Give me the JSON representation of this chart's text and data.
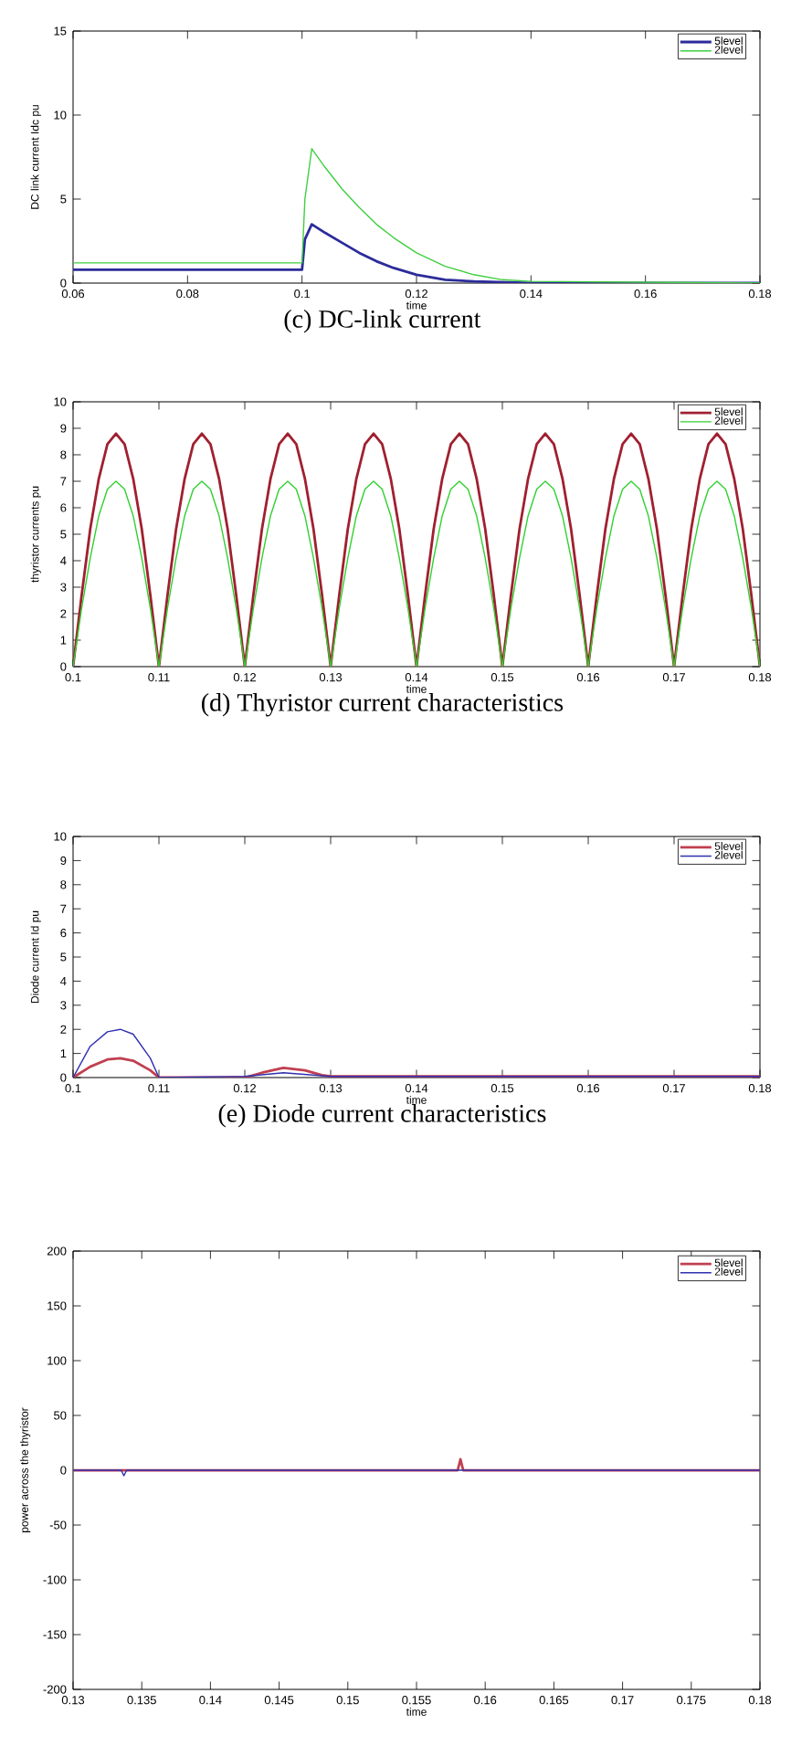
{
  "chart_data": [
    {
      "type": "line",
      "title": "(c)  DC-link current",
      "xlabel": "time",
      "ylabel": "DC link current Idc pu",
      "xlim": [
        0.06,
        0.18
      ],
      "xticks": [
        0.06,
        0.08,
        0.1,
        0.12,
        0.14,
        0.16,
        0.18
      ],
      "ylim": [
        0,
        15
      ],
      "yticks": [
        0,
        5,
        10,
        15
      ],
      "legend": "top right",
      "series": [
        {
          "name": "5level",
          "color": "#2b2b9a",
          "x": [
            0.06,
            0.1,
            0.1005,
            0.1017,
            0.104,
            0.107,
            0.11,
            0.113,
            0.116,
            0.12,
            0.125,
            0.13,
            0.14,
            0.18
          ],
          "values": [
            0.8,
            0.8,
            2.6,
            3.5,
            3.0,
            2.4,
            1.8,
            1.3,
            0.9,
            0.5,
            0.2,
            0.1,
            0,
            0
          ]
        },
        {
          "name": "2level",
          "color": "#3fcf3f",
          "x": [
            0.06,
            0.1,
            0.1005,
            0.1017,
            0.104,
            0.107,
            0.11,
            0.113,
            0.116,
            0.12,
            0.125,
            0.13,
            0.135,
            0.14,
            0.18
          ],
          "values": [
            1.2,
            1.2,
            5.0,
            8.0,
            6.9,
            5.6,
            4.5,
            3.5,
            2.7,
            1.8,
            1.0,
            0.5,
            0.2,
            0.1,
            0
          ]
        }
      ]
    },
    {
      "type": "line",
      "title": "(d)  Thyristor current characteristics",
      "xlabel": "time",
      "ylabel": "thyristor currents pu",
      "xlim": [
        0.1,
        0.18
      ],
      "xticks": [
        0.1,
        0.11,
        0.12,
        0.13,
        0.14,
        0.15,
        0.16,
        0.17,
        0.18
      ],
      "ylim": [
        0,
        10
      ],
      "yticks": [
        0,
        1,
        2,
        3,
        4,
        5,
        6,
        7,
        8,
        9,
        10
      ],
      "legend": "top right",
      "x": [
        0.1,
        0.101,
        0.102,
        0.103,
        0.104,
        0.105,
        0.106,
        0.107,
        0.108,
        0.109,
        0.11,
        0.111,
        0.112,
        0.113,
        0.114,
        0.115,
        0.116,
        0.117,
        0.118,
        0.119,
        0.12,
        0.121,
        0.122,
        0.123,
        0.124,
        0.125,
        0.126,
        0.127,
        0.128,
        0.129,
        0.13,
        0.131,
        0.132,
        0.133,
        0.134,
        0.135,
        0.136,
        0.137,
        0.138,
        0.139,
        0.14,
        0.141,
        0.142,
        0.143,
        0.144,
        0.145,
        0.146,
        0.147,
        0.148,
        0.149,
        0.15,
        0.151,
        0.152,
        0.153,
        0.154,
        0.155,
        0.156,
        0.157,
        0.158,
        0.159,
        0.16,
        0.161,
        0.162,
        0.163,
        0.164,
        0.165,
        0.166,
        0.167,
        0.168,
        0.169,
        0.17,
        0.171,
        0.172,
        0.173,
        0.174,
        0.175,
        0.176,
        0.177,
        0.178,
        0.179,
        0.18
      ],
      "series": [
        {
          "name": "5level",
          "color": "#a02030",
          "values": [
            0,
            2.7,
            5.2,
            7.1,
            8.4,
            8.8,
            8.4,
            7.1,
            5.2,
            2.7,
            0,
            2.7,
            5.2,
            7.1,
            8.4,
            8.8,
            8.4,
            7.1,
            5.2,
            2.7,
            0,
            2.7,
            5.2,
            7.1,
            8.4,
            8.8,
            8.4,
            7.1,
            5.2,
            2.7,
            0,
            2.7,
            5.2,
            7.1,
            8.4,
            8.8,
            8.4,
            7.1,
            5.2,
            2.7,
            0,
            2.7,
            5.2,
            7.1,
            8.4,
            8.8,
            8.4,
            7.1,
            5.2,
            2.7,
            0,
            2.7,
            5.2,
            7.1,
            8.4,
            8.8,
            8.4,
            7.1,
            5.2,
            2.7,
            0,
            2.7,
            5.2,
            7.1,
            8.4,
            8.8,
            8.4,
            7.1,
            5.2,
            2.7,
            0,
            2.7,
            5.2,
            7.1,
            8.4,
            8.8,
            8.4,
            7.1,
            5.2,
            2.7,
            0
          ]
        },
        {
          "name": "2level",
          "color": "#30d030",
          "values": [
            0,
            2.2,
            4.1,
            5.7,
            6.7,
            7.0,
            6.7,
            5.7,
            4.1,
            2.2,
            0,
            2.2,
            4.1,
            5.7,
            6.7,
            7.0,
            6.7,
            5.7,
            4.1,
            2.2,
            0,
            2.2,
            4.1,
            5.7,
            6.7,
            7.0,
            6.7,
            5.7,
            4.1,
            2.2,
            0,
            2.2,
            4.1,
            5.7,
            6.7,
            7.0,
            6.7,
            5.7,
            4.1,
            2.2,
            0,
            2.2,
            4.1,
            5.7,
            6.7,
            7.0,
            6.7,
            5.7,
            4.1,
            2.2,
            0,
            2.2,
            4.1,
            5.7,
            6.7,
            7.0,
            6.7,
            5.7,
            4.1,
            2.2,
            0,
            2.2,
            4.1,
            5.7,
            6.7,
            7.0,
            6.7,
            5.7,
            4.1,
            2.2,
            0,
            2.2,
            4.1,
            5.7,
            6.7,
            7.0,
            6.7,
            5.7,
            4.1,
            2.2,
            0
          ]
        }
      ]
    },
    {
      "type": "line",
      "title": "(e)  Diode current characteristics",
      "xlabel": "time",
      "ylabel": "Diode current Id pu",
      "xlim": [
        0.1,
        0.18
      ],
      "xticks": [
        0.1,
        0.11,
        0.12,
        0.13,
        0.14,
        0.15,
        0.16,
        0.17,
        0.18
      ],
      "ylim": [
        0,
        10
      ],
      "yticks": [
        0,
        1,
        2,
        3,
        4,
        5,
        6,
        7,
        8,
        9,
        10
      ],
      "legend": "top right",
      "series": [
        {
          "name": "5level",
          "color": "#c04050",
          "x": [
            0.1,
            0.102,
            0.104,
            0.1055,
            0.107,
            0.109,
            0.11,
            0.12,
            0.122,
            0.1245,
            0.127,
            0.129,
            0.13,
            0.18
          ],
          "values": [
            0,
            0.45,
            0.75,
            0.8,
            0.7,
            0.3,
            0,
            0,
            0.2,
            0.4,
            0.3,
            0.1,
            0.05,
            0.05
          ]
        },
        {
          "name": "2level",
          "color": "#3030b0",
          "x": [
            0.1,
            0.102,
            0.104,
            0.1055,
            0.107,
            0.109,
            0.11,
            0.12,
            0.1245,
            0.13,
            0.18
          ],
          "values": [
            0,
            1.3,
            1.9,
            2.0,
            1.8,
            0.8,
            0,
            0.05,
            0.2,
            0.05,
            0.05
          ]
        }
      ]
    },
    {
      "type": "line",
      "xlabel": "time",
      "ylabel": "power across the thyristor",
      "xlim": [
        0.13,
        0.18
      ],
      "xticks": [
        0.13,
        0.135,
        0.14,
        0.145,
        0.15,
        0.155,
        0.16,
        0.165,
        0.17,
        0.175,
        0.18
      ],
      "ylim": [
        -200,
        200
      ],
      "yticks": [
        -200,
        -150,
        -100,
        -50,
        0,
        50,
        100,
        150,
        200
      ],
      "legend": "top right",
      "series": [
        {
          "name": "5level",
          "color": "#c04050",
          "x": [
            0.13,
            0.158,
            0.1582,
            0.1584,
            0.18
          ],
          "values": [
            0,
            0,
            10,
            0,
            0
          ]
        },
        {
          "name": "2level",
          "color": "#3030b0",
          "x": [
            0.13,
            0.1335,
            0.1337,
            0.1339,
            0.18
          ],
          "values": [
            0,
            0,
            -5,
            0,
            0
          ]
        }
      ]
    }
  ]
}
